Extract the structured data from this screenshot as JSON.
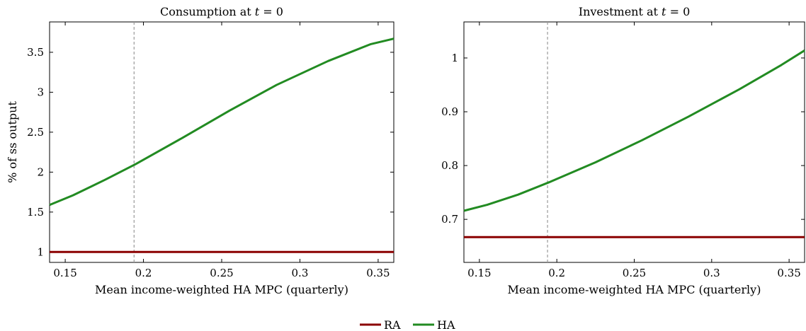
{
  "legend": {
    "items": [
      {
        "label": "RA",
        "color": "#8b0000"
      },
      {
        "label": "HA",
        "color": "#228b22"
      }
    ]
  },
  "chart_data": [
    {
      "type": "line",
      "title": "Consumption at t = 0",
      "title_parts": [
        "Consumption at ",
        "t",
        " = 0"
      ],
      "xlabel": "Mean income-weighted HA MPC (quarterly)",
      "ylabel": "% of ss output",
      "xlim": [
        0.14,
        0.36
      ],
      "ylim": [
        0.87,
        3.88
      ],
      "xticks": [
        0.15,
        0.2,
        0.25,
        0.3,
        0.35
      ],
      "xtick_labels": [
        "0.15",
        "0.2",
        "0.25",
        "0.3",
        "0.35"
      ],
      "yticks": [
        1,
        1.5,
        2,
        2.5,
        3,
        3.5
      ],
      "ytick_labels": [
        "1",
        "1.5",
        "2",
        "2.5",
        "3",
        "3.5"
      ],
      "vline": 0.194,
      "grid": false,
      "series": [
        {
          "name": "RA",
          "color": "#8b0000",
          "x": [
            0.14,
            0.36
          ],
          "y": [
            1.0,
            1.0
          ]
        },
        {
          "name": "HA",
          "color": "#228b22",
          "x": [
            0.14,
            0.155,
            0.175,
            0.195,
            0.225,
            0.255,
            0.285,
            0.318,
            0.345,
            0.36
          ],
          "y": [
            1.59,
            1.71,
            1.9,
            2.1,
            2.43,
            2.77,
            3.09,
            3.39,
            3.6,
            3.67
          ]
        }
      ]
    },
    {
      "type": "line",
      "title": "Investment at t = 0",
      "title_parts": [
        "Investment at ",
        "t",
        " = 0"
      ],
      "xlabel": "Mean income-weighted HA MPC (quarterly)",
      "ylabel": "",
      "xlim": [
        0.14,
        0.36
      ],
      "ylim": [
        0.62,
        1.067
      ],
      "xticks": [
        0.15,
        0.2,
        0.25,
        0.3,
        0.35
      ],
      "xtick_labels": [
        "0.15",
        "0.2",
        "0.25",
        "0.3",
        "0.35"
      ],
      "yticks": [
        0.7,
        0.8,
        0.9,
        1
      ],
      "ytick_labels": [
        "0.7",
        "0.8",
        "0.9",
        "1"
      ],
      "vline": 0.194,
      "grid": false,
      "series": [
        {
          "name": "RA",
          "color": "#8b0000",
          "x": [
            0.14,
            0.36
          ],
          "y": [
            0.667,
            0.667
          ]
        },
        {
          "name": "HA",
          "color": "#228b22",
          "x": [
            0.14,
            0.155,
            0.175,
            0.195,
            0.225,
            0.255,
            0.285,
            0.318,
            0.345,
            0.36
          ],
          "y": [
            0.716,
            0.727,
            0.746,
            0.769,
            0.806,
            0.847,
            0.891,
            0.942,
            0.987,
            1.014
          ]
        }
      ]
    }
  ]
}
